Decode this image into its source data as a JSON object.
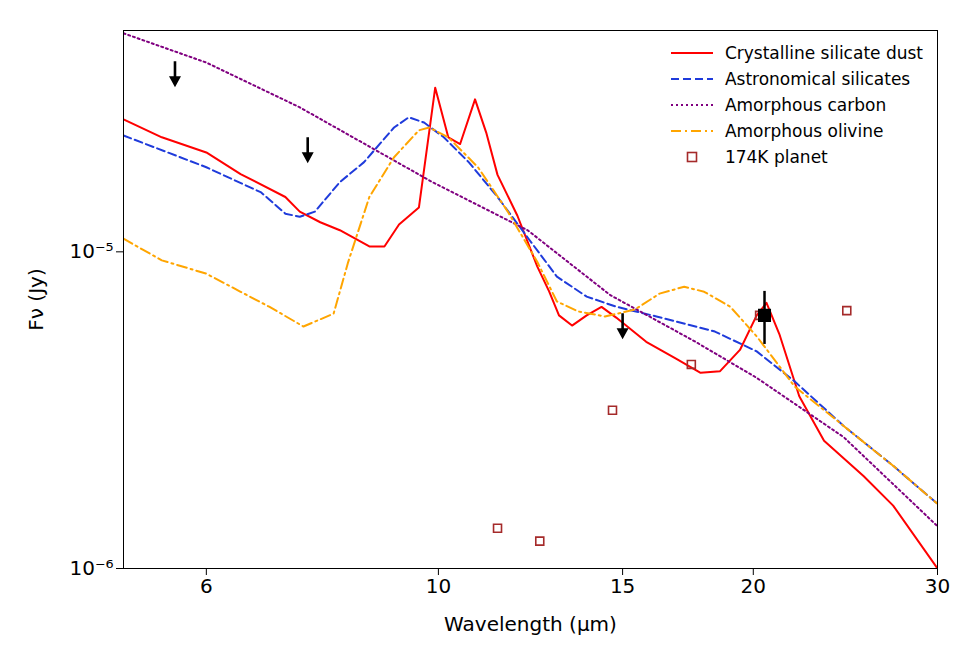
{
  "chart_data": {
    "type": "line",
    "x_label": "Wavelength (μm)",
    "y_label": "Fν (Jy)",
    "log": true,
    "grid": false,
    "legend": "upper right",
    "xlim": [
      5,
      30
    ],
    "xticks": [
      6,
      10,
      15,
      20,
      30
    ],
    "ylim": [
      1e-06,
      5e-05
    ],
    "yticks": [
      {
        "value": 1e-06,
        "label": "10⁻⁶"
      },
      {
        "value": 1e-05,
        "label": "10⁻⁵"
      }
    ],
    "series": [
      {
        "name": "Crystalline silicate dust",
        "type": "line",
        "color": "#ff0000",
        "line_style": "solid",
        "x": [
          5.0,
          5.44,
          6.0,
          6.47,
          7.14,
          7.37,
          7.71,
          8.05,
          8.59,
          8.88,
          9.17,
          9.58,
          9.93,
          10.22,
          10.49,
          10.84,
          11.11,
          11.39,
          11.9,
          12.43,
          12.76,
          13.04,
          13.42,
          13.86,
          14.32,
          14.79,
          15.8,
          16.87,
          17.81,
          18.59,
          19.42,
          20.15,
          20.59,
          21.18,
          22.13,
          23.37,
          25.49,
          27.21,
          30.0
        ],
        "values": [
          2.62e-05,
          2.3e-05,
          2.06e-05,
          1.76e-05,
          1.49e-05,
          1.34e-05,
          1.24e-05,
          1.17e-05,
          1.04e-05,
          1.04e-05,
          1.22e-05,
          1.38e-05,
          3.3e-05,
          2.3e-05,
          2.19e-05,
          3.03e-05,
          2.38e-05,
          1.75e-05,
          1.3e-05,
          9e-06,
          7.5e-06,
          6.3e-06,
          5.85e-06,
          6.3e-06,
          6.7e-06,
          6.2e-06,
          5.2e-06,
          4.6e-06,
          4.15e-06,
          4.2e-06,
          4.9e-06,
          6.3e-06,
          6.9e-06,
          5.5e-06,
          3.5e-06,
          2.53e-06,
          1.96e-06,
          1.58e-06,
          1e-06
        ]
      },
      {
        "name": "Astronomical silicates",
        "type": "line",
        "color": "#1f3bdb",
        "line_style": "dashed",
        "x": [
          5.0,
          6.0,
          6.77,
          7.14,
          7.37,
          7.62,
          8.05,
          8.49,
          9.07,
          9.37,
          9.69,
          10.12,
          10.69,
          11.39,
          12.17,
          12.98,
          13.86,
          14.79,
          16.16,
          18.38,
          20.15,
          21.9,
          24.4,
          27.21,
          30.0
        ],
        "values": [
          2.33e-05,
          1.85e-05,
          1.54e-05,
          1.32e-05,
          1.29e-05,
          1.34e-05,
          1.66e-05,
          1.92e-05,
          2.47e-05,
          2.66e-05,
          2.56e-05,
          2.3e-05,
          1.92e-05,
          1.49e-05,
          1.11e-05,
          8.35e-06,
          7.22e-06,
          6.71e-06,
          6.25e-06,
          5.6e-06,
          4.85e-06,
          3.9e-06,
          2.82e-06,
          2.11e-06,
          1.6e-06
        ]
      },
      {
        "name": "Amorphous carbon",
        "type": "line",
        "color": "#800080",
        "line_style": "dotted",
        "x": [
          5.0,
          6.0,
          7.37,
          9.87,
          12.17,
          14.6,
          17.61,
          20.15,
          24.4,
          30.0
        ],
        "values": [
          4.9e-05,
          3.96e-05,
          2.86e-05,
          1.66e-05,
          1.17e-05,
          7.3e-06,
          5.2e-06,
          4e-06,
          2.6e-06,
          1.36e-06
        ]
      },
      {
        "name": "Amorphous olivine",
        "type": "line",
        "color": "#ffa500",
        "line_style": "dashdot",
        "x": [
          5.0,
          5.44,
          6.0,
          6.47,
          6.89,
          7.43,
          7.94,
          8.2,
          8.59,
          9.07,
          9.58,
          9.8,
          10.22,
          10.91,
          11.65,
          12.43,
          12.98,
          13.61,
          14.43,
          15.41,
          16.27,
          17.18,
          17.95,
          19.01,
          20.15,
          21.9,
          24.4,
          27.21,
          30.0
        ],
        "values": [
          1.1e-05,
          9.4e-06,
          8.53e-06,
          7.48e-06,
          6.71e-06,
          5.81e-06,
          6.38e-06,
          9.3e-06,
          1.49e-05,
          1.99e-05,
          2.42e-05,
          2.47e-05,
          2.3e-05,
          1.85e-05,
          1.34e-05,
          9.3e-06,
          6.97e-06,
          6.48e-06,
          6.25e-06,
          6.57e-06,
          7.38e-06,
          7.76e-06,
          7.48e-06,
          6.71e-06,
          5.41e-06,
          3.76e-06,
          2.82e-06,
          2.11e-06,
          1.6e-06
        ]
      },
      {
        "name": "174K planet",
        "type": "scatter",
        "color": "#a52a2a",
        "marker": "square",
        "x": [
          11.39,
          12.5,
          14.67,
          17.45,
          20.28,
          24.57
        ],
        "values": [
          1.34e-06,
          1.22e-06,
          3.16e-06,
          4.41e-06,
          6.3e-06,
          6.52e-06
        ]
      }
    ],
    "detections": {
      "color": "#000000",
      "marker": "square",
      "x": [
        20.5
      ],
      "values": [
        6.3e-06
      ],
      "error_low": [
        5.1e-06
      ],
      "error_high": [
        7.5e-06
      ]
    },
    "upper_limits": {
      "color": "#000000",
      "marker": "arrow",
      "x": [
        5.6,
        7.5,
        15
      ],
      "values": [
        4e-05,
        2.3e-05,
        6.4e-06
      ]
    }
  }
}
